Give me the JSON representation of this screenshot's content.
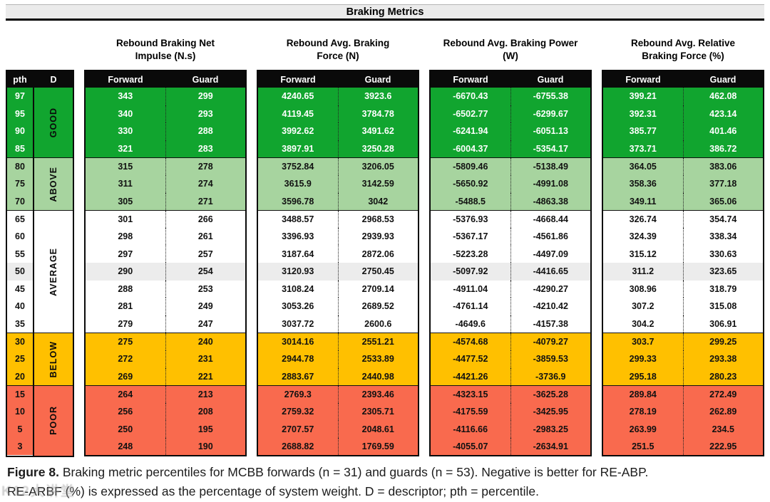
{
  "title": "Braking Metrics",
  "caption": {
    "figure_label": "Figure 8.",
    "line1": "Braking metric percentiles for MCBB forwards (n = 31) and guards (n = 53). Negative is better for RE-ABP.",
    "line2": "RE-ARBF (%) is expressed as the percentage of system weight. D = descriptor; pth = percentile."
  },
  "watermark_text": "K12大讲堂",
  "colors": {
    "good_bg": "#11a52f",
    "above_bg": "#a7d49f",
    "average_bg": "#ffffff",
    "below_bg": "#ffc000",
    "poor_bg": "#f96a4e",
    "header_bg": "#0a0a0a",
    "highlight_row_bg": "#ececec",
    "titlebar_bg": "#ebebeb"
  },
  "chart_data": {
    "type": "table",
    "pth_header": "pth",
    "descriptor_header": "D",
    "subcolumns": [
      "Forward",
      "Guard"
    ],
    "groups": [
      {
        "title": "Rebound Braking Net\nImpulse (N.s)"
      },
      {
        "title": "Rebound Avg. Braking\nForce (N)"
      },
      {
        "title": "Rebound Avg. Braking Power\n(W)"
      },
      {
        "title": "Rebound Avg. Relative\nBraking Force (%)"
      }
    ],
    "bands": [
      {
        "label": "GOOD",
        "row_count": 4,
        "bg": "#11a52f",
        "text": "#ffffff"
      },
      {
        "label": "ABOVE",
        "row_count": 3,
        "bg": "#a7d49f",
        "text": "#111111"
      },
      {
        "label": "AVERAGE",
        "row_count": 7,
        "bg": "#ffffff",
        "text": "#111111"
      },
      {
        "label": "BELOW",
        "row_count": 3,
        "bg": "#ffc000",
        "text": "#111111"
      },
      {
        "label": "POOR",
        "row_count": 4,
        "bg": "#f96a4e",
        "text": "#111111"
      }
    ],
    "rows": [
      {
        "pth": "97",
        "values": [
          "343",
          "299",
          "4240.65",
          "3923.6",
          "-6670.43",
          "-6755.38",
          "399.21",
          "462.08"
        ]
      },
      {
        "pth": "95",
        "values": [
          "340",
          "293",
          "4119.45",
          "3784.78",
          "-6502.77",
          "-6299.67",
          "392.31",
          "423.14"
        ]
      },
      {
        "pth": "90",
        "values": [
          "330",
          "288",
          "3992.62",
          "3491.62",
          "-6241.94",
          "-6051.13",
          "385.77",
          "401.46"
        ]
      },
      {
        "pth": "85",
        "values": [
          "321",
          "283",
          "3897.91",
          "3250.28",
          "-6004.37",
          "-5354.17",
          "373.71",
          "386.72"
        ]
      },
      {
        "pth": "80",
        "values": [
          "315",
          "278",
          "3752.84",
          "3206.05",
          "-5809.46",
          "-5138.49",
          "364.05",
          "383.06"
        ]
      },
      {
        "pth": "75",
        "values": [
          "311",
          "274",
          "3615.9",
          "3142.59",
          "-5650.92",
          "-4991.08",
          "358.36",
          "377.18"
        ]
      },
      {
        "pth": "70",
        "values": [
          "305",
          "271",
          "3596.78",
          "3042",
          "-5488.5",
          "-4863.38",
          "349.11",
          "365.06"
        ]
      },
      {
        "pth": "65",
        "values": [
          "301",
          "266",
          "3488.57",
          "2968.53",
          "-5376.93",
          "-4668.44",
          "326.74",
          "354.74"
        ]
      },
      {
        "pth": "60",
        "values": [
          "298",
          "261",
          "3396.93",
          "2939.93",
          "-5367.17",
          "-4561.86",
          "324.39",
          "338.34"
        ]
      },
      {
        "pth": "55",
        "values": [
          "297",
          "257",
          "3187.64",
          "2872.06",
          "-5223.28",
          "-4497.09",
          "315.12",
          "330.63"
        ]
      },
      {
        "pth": "50",
        "highlight": true,
        "values": [
          "290",
          "254",
          "3120.93",
          "2750.45",
          "-5097.92",
          "-4416.65",
          "311.2",
          "323.65"
        ]
      },
      {
        "pth": "45",
        "values": [
          "288",
          "253",
          "3108.24",
          "2709.14",
          "-4911.04",
          "-4290.27",
          "308.96",
          "318.79"
        ]
      },
      {
        "pth": "40",
        "values": [
          "281",
          "249",
          "3053.26",
          "2689.52",
          "-4761.14",
          "-4210.42",
          "307.2",
          "315.08"
        ]
      },
      {
        "pth": "35",
        "values": [
          "279",
          "247",
          "3037.72",
          "2600.6",
          "-4649.6",
          "-4157.38",
          "304.2",
          "306.91"
        ]
      },
      {
        "pth": "30",
        "values": [
          "275",
          "240",
          "3014.16",
          "2551.21",
          "-4574.68",
          "-4079.27",
          "303.7",
          "299.25"
        ]
      },
      {
        "pth": "25",
        "values": [
          "272",
          "231",
          "2944.78",
          "2533.89",
          "-4477.52",
          "-3859.53",
          "299.33",
          "293.38"
        ]
      },
      {
        "pth": "20",
        "values": [
          "269",
          "221",
          "2883.67",
          "2440.98",
          "-4421.26",
          "-3736.9",
          "295.18",
          "280.23"
        ]
      },
      {
        "pth": "15",
        "values": [
          "264",
          "213",
          "2769.3",
          "2393.46",
          "-4323.15",
          "-3625.28",
          "289.84",
          "272.49"
        ]
      },
      {
        "pth": "10",
        "values": [
          "256",
          "208",
          "2759.32",
          "2305.71",
          "-4175.59",
          "-3425.95",
          "278.19",
          "262.89"
        ]
      },
      {
        "pth": "5",
        "values": [
          "250",
          "195",
          "2707.57",
          "2048.61",
          "-4116.66",
          "-2983.25",
          "263.99",
          "234.5"
        ]
      },
      {
        "pth": "3",
        "values": [
          "248",
          "190",
          "2688.82",
          "1769.59",
          "-4055.07",
          "-2634.91",
          "251.5",
          "222.95"
        ]
      }
    ]
  }
}
